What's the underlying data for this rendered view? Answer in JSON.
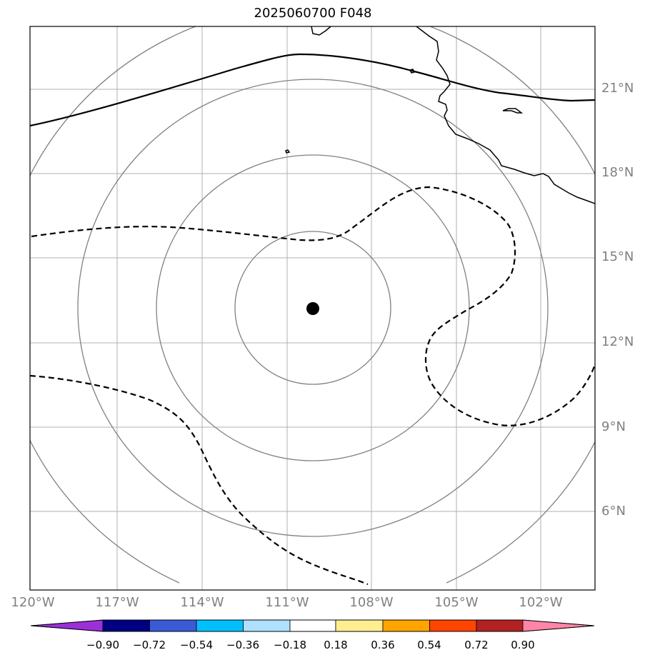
{
  "title": "2025060700 F048",
  "lat_labels": [
    "21°N",
    "18°N",
    "15°N",
    "12°N",
    "9°N",
    "6°N"
  ],
  "lon_labels": [
    "120°W",
    "117°W",
    "114°W",
    "111°W",
    "108°W",
    "105°W",
    "102°W"
  ],
  "colorbar": {
    "tick_labels": [
      "−0.90",
      "−0.72",
      "−0.54",
      "−0.36",
      "−0.18",
      "0.18",
      "0.36",
      "0.54",
      "0.72",
      "0.90"
    ],
    "colors": [
      "#9b30d8",
      "#000080",
      "#3b5bd6",
      "#00bfff",
      "#b0e0ff",
      "#ffffff",
      "#ffee90",
      "#ffa500",
      "#ff4500",
      "#b22222",
      "#ff85a8"
    ]
  },
  "storm_center": {
    "lat": 13.2,
    "lon": "110.1°W"
  },
  "colors": {
    "grid": "#b0b0b0",
    "range_rings": "#808080",
    "coast": "#000000",
    "contour": "#000000"
  }
}
